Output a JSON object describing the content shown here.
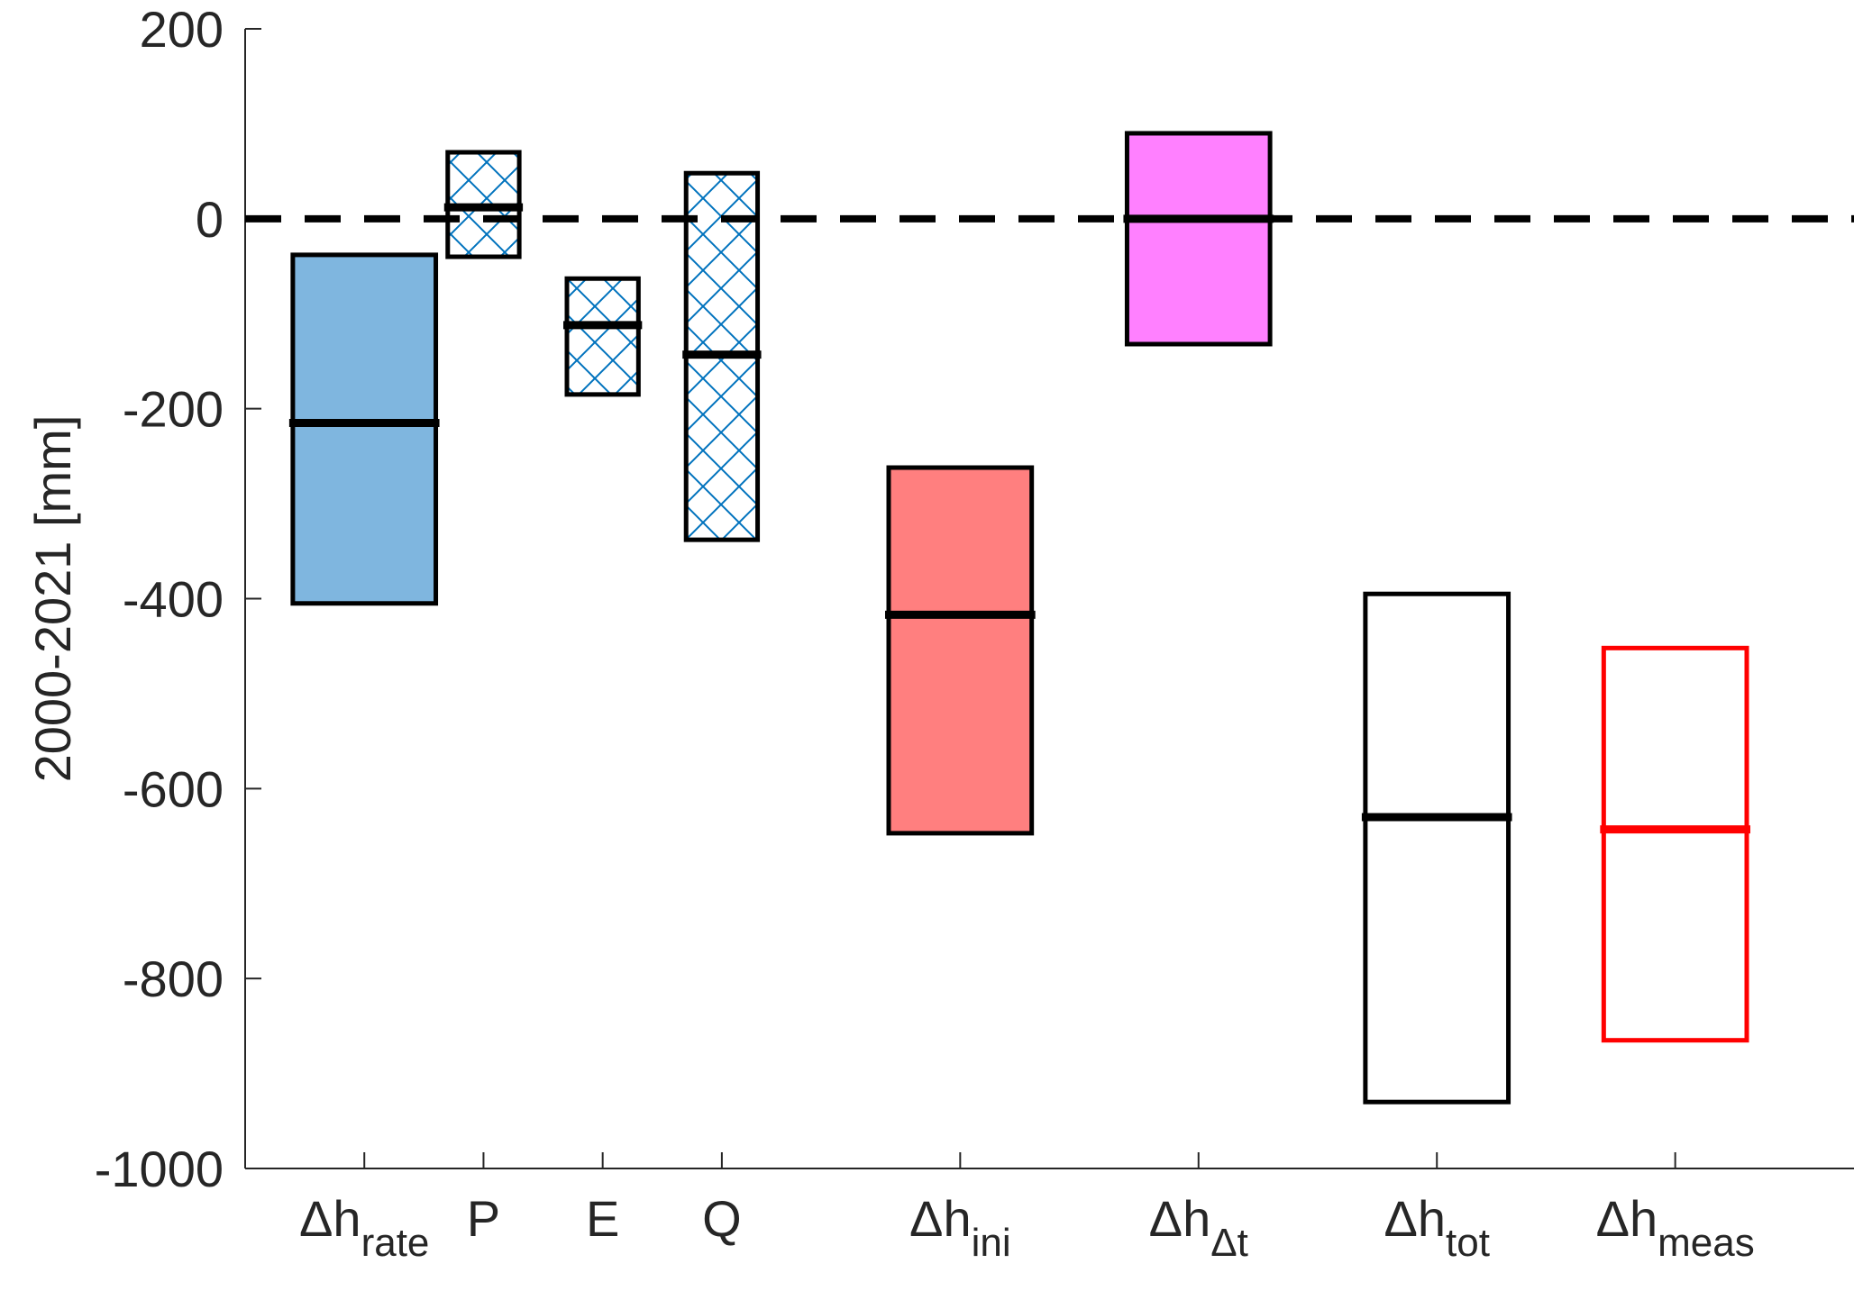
{
  "chart_data": {
    "type": "box",
    "ylabel": "2000-2021 [mm]",
    "ylim": [
      -1000,
      200
    ],
    "yticks": [
      200,
      0,
      -200,
      -400,
      -600,
      -800,
      -1000
    ],
    "ytick_labels": [
      "200",
      "0",
      "-200",
      "-400",
      "-600",
      "-800",
      "-1000"
    ],
    "reference_line": {
      "y": 0,
      "style": "dashed",
      "color": "#000000"
    },
    "categories": [
      {
        "main": "Δh",
        "sub": "rate"
      },
      {
        "main": "P",
        "sub": ""
      },
      {
        "main": "E",
        "sub": ""
      },
      {
        "main": "Q",
        "sub": ""
      },
      {
        "main": "Δh",
        "sub": "ini"
      },
      {
        "main": "Δh",
        "sub": "Δt"
      },
      {
        "main": "Δh",
        "sub": "tot"
      },
      {
        "main": "Δh",
        "sub": "meas"
      }
    ],
    "category_x": [
      1,
      2,
      3,
      4,
      6,
      8,
      10,
      12
    ],
    "xlim": [
      0,
      13.5
    ],
    "boxes": [
      {
        "x": 1,
        "low": -405,
        "high": -38,
        "median": -215,
        "fill": "#7fb6df",
        "edge": "#000000",
        "pattern": "none",
        "width": 1.2
      },
      {
        "x": 2,
        "low": -40,
        "high": 70,
        "median": 12,
        "fill": "none",
        "edge": "#000000",
        "pattern": "crosshatch",
        "width": 0.6
      },
      {
        "x": 3,
        "low": -185,
        "high": -63,
        "median": -112,
        "fill": "none",
        "edge": "#000000",
        "pattern": "crosshatch",
        "width": 0.6
      },
      {
        "x": 4,
        "low": -338,
        "high": 48,
        "median": -143,
        "fill": "none",
        "edge": "#000000",
        "pattern": "crosshatch",
        "width": 0.6
      },
      {
        "x": 6,
        "low": -647,
        "high": -262,
        "median": -417,
        "fill": "#ff7f7f",
        "edge": "#000000",
        "pattern": "none",
        "width": 1.2
      },
      {
        "x": 8,
        "low": -132,
        "high": 90,
        "median": 0,
        "fill": "#ff80ff",
        "edge": "#000000",
        "pattern": "none",
        "width": 1.2
      },
      {
        "x": 10,
        "low": -930,
        "high": -395,
        "median": -630,
        "fill": "none",
        "edge": "#000000",
        "pattern": "none",
        "width": 1.2
      },
      {
        "x": 12,
        "low": -865,
        "high": -452,
        "median": -643,
        "fill": "none",
        "edge": "#ff0000",
        "pattern": "none",
        "width": 1.2
      }
    ],
    "hatch_color": "#0072bd",
    "grid": false,
    "legend": "none"
  }
}
